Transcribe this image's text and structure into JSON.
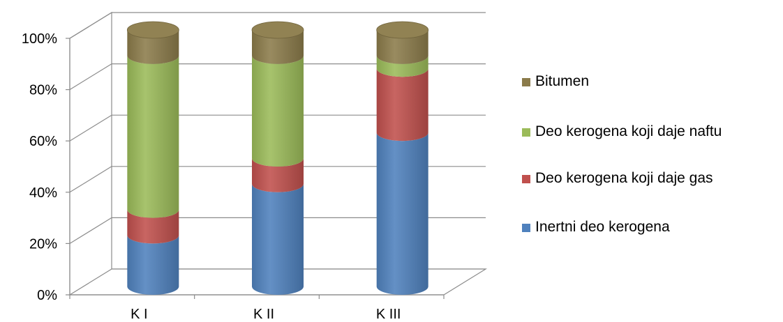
{
  "chart_data": {
    "type": "bar",
    "stacked": true,
    "percent": true,
    "style": "3d-cylinder",
    "categories": [
      "K I",
      "K II",
      "K III"
    ],
    "ylim": [
      0,
      100
    ],
    "yticks": [
      "0%",
      "20%",
      "40%",
      "60%",
      "80%",
      "100%"
    ],
    "grid": true,
    "legend_position": "right",
    "series": [
      {
        "name": "Inertni deo kerogena",
        "values": [
          20,
          40,
          60
        ],
        "color": "#4F81BD"
      },
      {
        "name": "Deo kerogena koji daje gas",
        "values": [
          10,
          10,
          25
        ],
        "color": "#C0504D"
      },
      {
        "name": "Deo kerogena koji daje naftu",
        "values": [
          60,
          40,
          5
        ],
        "color": "#9BBB59"
      },
      {
        "name": "Bitumen",
        "values": [
          10,
          10,
          10
        ],
        "color": "#8B7B4A"
      }
    ],
    "legend_order": [
      "Bitumen",
      "Deo kerogena koji daje naftu",
      "Deo kerogena koji daje gas",
      "Inertni deo kerogena"
    ]
  }
}
